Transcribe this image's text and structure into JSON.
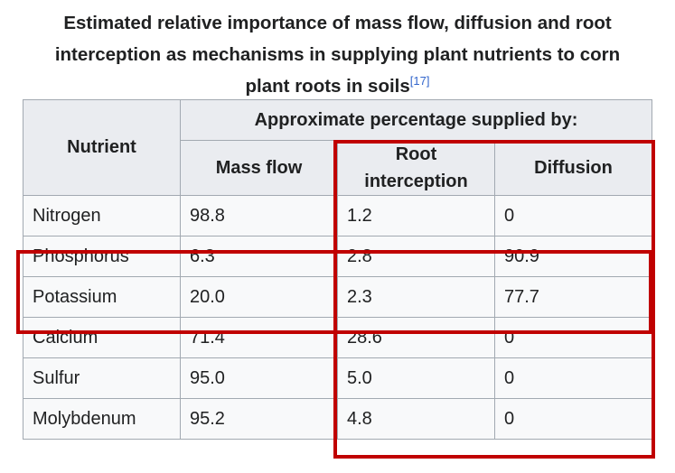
{
  "caption": {
    "line1": "Estimated relative importance of mass flow, diffusion and root",
    "line2": "interception as mechanisms in supplying plant nutrients to corn",
    "line3": "plant roots in soils",
    "ref": "[17]"
  },
  "table": {
    "header_nutrient": "Nutrient",
    "header_group": "Approximate percentage supplied by:",
    "header_mass_flow": "Mass flow",
    "header_root_interception_1": "Root",
    "header_root_interception_2": "interception",
    "header_diffusion": "Diffusion",
    "rows": [
      {
        "nutrient": "Nitrogen",
        "mass_flow": "98.8",
        "root_interception": "1.2",
        "diffusion": "0"
      },
      {
        "nutrient": "Phosphorus",
        "mass_flow": "6.3",
        "root_interception": "2.8",
        "diffusion": "90.9"
      },
      {
        "nutrient": "Potassium",
        "mass_flow": "20.0",
        "root_interception": "2.3",
        "diffusion": "77.7"
      },
      {
        "nutrient": "Calcium",
        "mass_flow": "71.4",
        "root_interception": "28.6",
        "diffusion": "0"
      },
      {
        "nutrient": "Sulfur",
        "mass_flow": "95.0",
        "root_interception": "5.0",
        "diffusion": "0"
      },
      {
        "nutrient": "Molybdenum",
        "mass_flow": "95.2",
        "root_interception": "4.8",
        "diffusion": "0"
      }
    ]
  },
  "highlight_color": "#c00000"
}
